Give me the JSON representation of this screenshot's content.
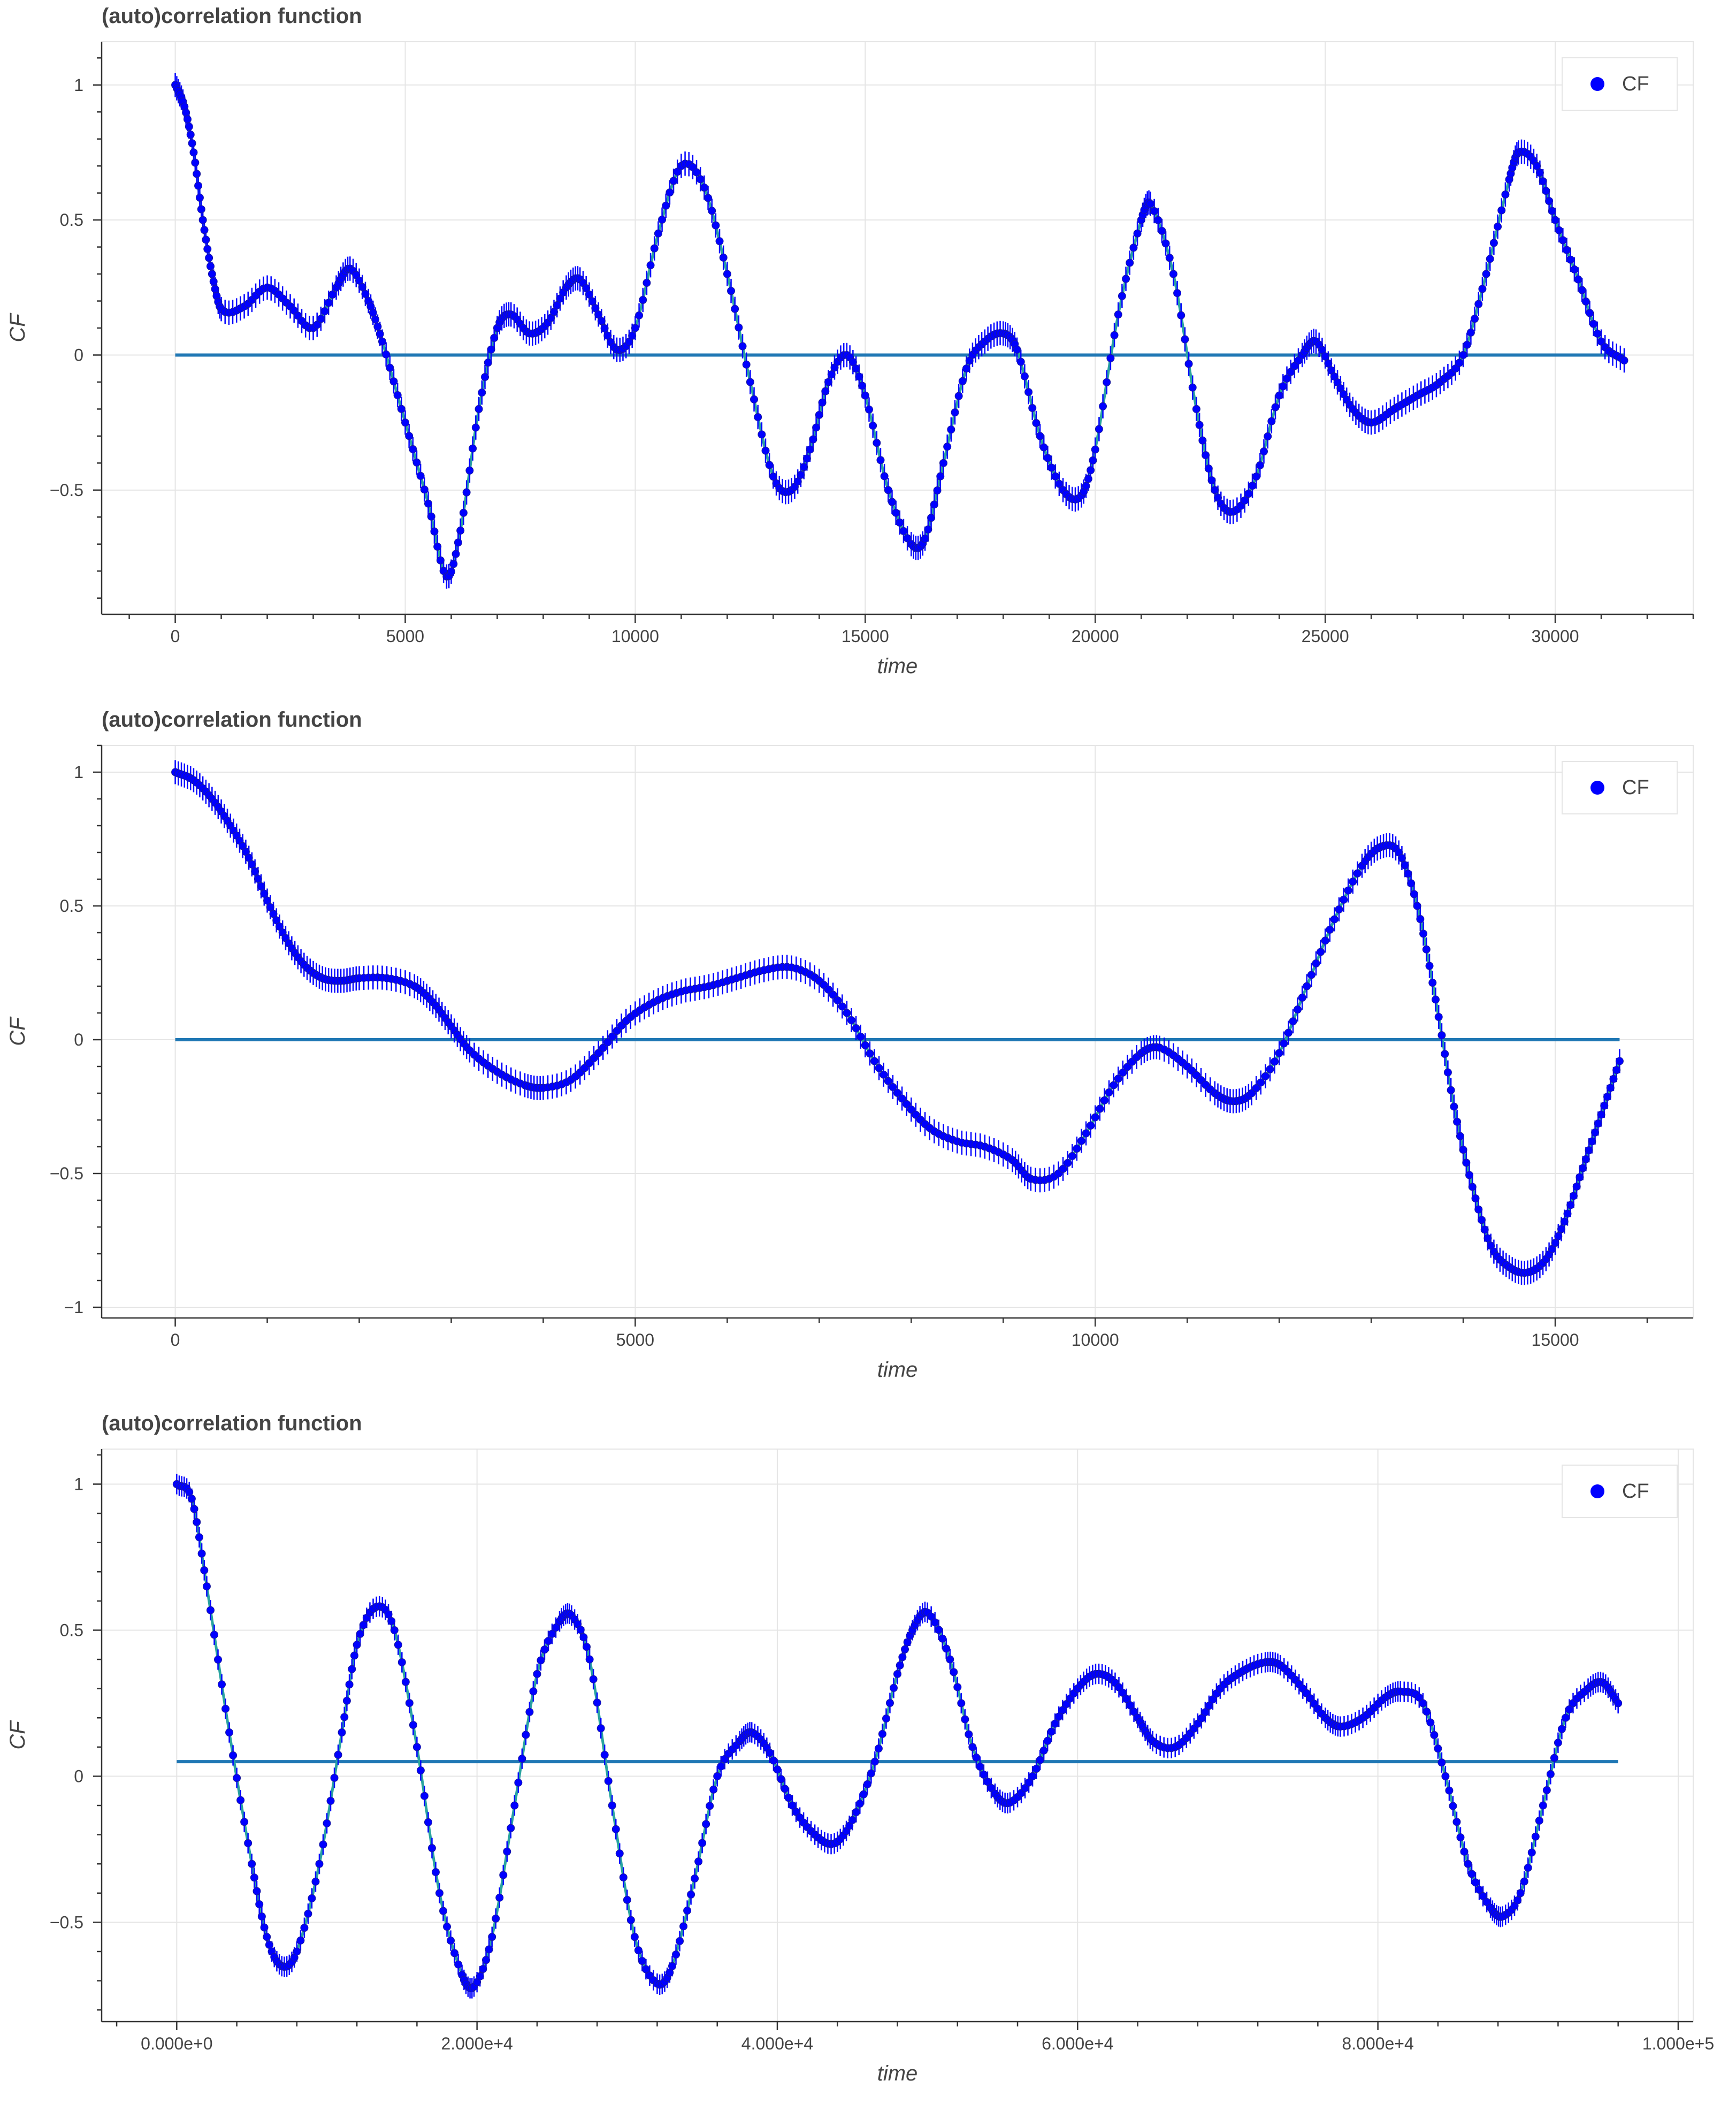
{
  "panels": [
    {
      "title": "(auto)correlation function",
      "legend": {
        "label": "CF",
        "color": "#0000ff"
      },
      "chart_data": {
        "type": "scatter",
        "title": "(auto)correlation function",
        "xlabel": "time",
        "ylabel": "CF",
        "xlim": [
          -1600,
          33000
        ],
        "ylim": [
          -0.96,
          1.16
        ],
        "xticks": [
          0,
          5000,
          10000,
          15000,
          20000,
          25000,
          30000
        ],
        "xtick_labels": [
          "0",
          "5000",
          "10000",
          "15000",
          "20000",
          "25000",
          "30000"
        ],
        "yticks": [
          -0.5,
          0,
          0.5,
          1
        ],
        "ytick_labels": [
          "−0.5",
          "0",
          "0.5",
          "1"
        ],
        "grid": true,
        "legend_position": "top-right",
        "series": [
          {
            "name": "CF",
            "color": "#0000ff",
            "marker": "circle",
            "error_bar": 0.045,
            "x": [
              0,
              200,
              400,
              600,
              800,
              1000,
              1500,
              2000,
              2500,
              3000,
              3500,
              3800,
              4200,
              4500,
              5000,
              5500,
              5900,
              6200,
              6600,
              7000,
              7300,
              7700,
              8100,
              8500,
              8800,
              9200,
              9600,
              10000,
              10500,
              11000,
              11500,
              12000,
              12500,
              13000,
              13400,
              13800,
              14200,
              14600,
              15000,
              15500,
              16000,
              16300,
              16700,
              17200,
              17600,
              18000,
              18300,
              18800,
              19300,
              19700,
              20000,
              20500,
              21000,
              21200,
              21700,
              22200,
              22600,
              23000,
              23500,
              24000,
              24500,
              24800,
              25200,
              25600,
              26000,
              26500,
              27000,
              27500,
              28000,
              28500,
              29000,
              29200,
              29600,
              30000,
              30500,
              31000,
              31500
            ],
            "y": [
              1.0,
              0.92,
              0.75,
              0.5,
              0.3,
              0.17,
              0.18,
              0.25,
              0.18,
              0.1,
              0.25,
              0.32,
              0.2,
              0.05,
              -0.25,
              -0.55,
              -0.82,
              -0.65,
              -0.2,
              0.1,
              0.15,
              0.08,
              0.12,
              0.25,
              0.28,
              0.15,
              0.02,
              0.1,
              0.45,
              0.7,
              0.62,
              0.3,
              -0.1,
              -0.45,
              -0.5,
              -0.35,
              -0.1,
              0.0,
              -0.15,
              -0.5,
              -0.7,
              -0.68,
              -0.4,
              -0.05,
              0.05,
              0.08,
              0.02,
              -0.3,
              -0.5,
              -0.52,
              -0.35,
              0.15,
              0.5,
              0.56,
              0.3,
              -0.2,
              -0.5,
              -0.58,
              -0.45,
              -0.15,
              0.0,
              0.05,
              -0.08,
              -0.2,
              -0.25,
              -0.2,
              -0.15,
              -0.1,
              0.0,
              0.3,
              0.65,
              0.75,
              0.7,
              0.5,
              0.28,
              0.05,
              -0.02
            ]
          }
        ],
        "zero_line": {
          "y": 0,
          "x_range": [
            0,
            31500
          ],
          "color": "#1f77b4"
        }
      }
    },
    {
      "title": "(auto)correlation function",
      "legend": {
        "label": "CF",
        "color": "#0000ff"
      },
      "chart_data": {
        "type": "scatter",
        "title": "(auto)correlation function",
        "xlabel": "time",
        "ylabel": "CF",
        "xlim": [
          -800,
          16500
        ],
        "ylim": [
          -1.04,
          1.1
        ],
        "xticks": [
          0,
          5000,
          10000,
          15000
        ],
        "xtick_labels": [
          "0",
          "5000",
          "10000",
          "15000"
        ],
        "yticks": [
          -1,
          -0.5,
          0,
          0.5,
          1
        ],
        "ytick_labels": [
          "−1",
          "−0.5",
          "0",
          "0.5",
          "1"
        ],
        "grid": true,
        "legend_position": "top-right",
        "series": [
          {
            "name": "CF",
            "color": "#0000ff",
            "marker": "circle",
            "error_bar": 0.045,
            "x": [
              0,
              200,
              400,
              600,
              800,
              1000,
              1200,
              1400,
              1600,
              1800,
              2000,
              2300,
              2600,
              2800,
              3000,
              3200,
              3500,
              3800,
              4000,
              4300,
              4600,
              4900,
              5200,
              5500,
              5800,
              6100,
              6400,
              6700,
              7000,
              7300,
              7600,
              7900,
              8200,
              8500,
              8800,
              9100,
              9300,
              9600,
              9900,
              10200,
              10500,
              10700,
              11000,
              11300,
              11500,
              11700,
              12000,
              12300,
              12600,
              12900,
              13100,
              13300,
              13500,
              13700,
              13900,
              14100,
              14300,
              14500,
              14700,
              14900,
              15100,
              15300,
              15500,
              15700
            ],
            "y": [
              1.0,
              0.97,
              0.9,
              0.8,
              0.68,
              0.52,
              0.38,
              0.28,
              0.23,
              0.22,
              0.23,
              0.23,
              0.2,
              0.14,
              0.05,
              -0.04,
              -0.12,
              -0.17,
              -0.18,
              -0.15,
              -0.05,
              0.07,
              0.14,
              0.18,
              0.2,
              0.23,
              0.26,
              0.27,
              0.22,
              0.1,
              -0.08,
              -0.22,
              -0.33,
              -0.38,
              -0.4,
              -0.45,
              -0.52,
              -0.5,
              -0.35,
              -0.17,
              -0.05,
              -0.03,
              -0.1,
              -0.2,
              -0.23,
              -0.2,
              -0.05,
              0.2,
              0.45,
              0.65,
              0.72,
              0.7,
              0.5,
              0.15,
              -0.25,
              -0.55,
              -0.77,
              -0.85,
              -0.87,
              -0.82,
              -0.68,
              -0.48,
              -0.28,
              -0.08
            ]
          }
        ],
        "zero_line": {
          "y": 0,
          "x_range": [
            0,
            15700
          ],
          "color": "#1f77b4"
        }
      }
    },
    {
      "title": "(auto)correlation function",
      "legend": {
        "label": "CF",
        "color": "#0000ff"
      },
      "chart_data": {
        "type": "scatter",
        "title": "(auto)correlation function",
        "xlabel": "time",
        "ylabel": "CF",
        "xlim": [
          -5000,
          101000
        ],
        "ylim": [
          -0.84,
          1.12
        ],
        "xticks": [
          0,
          20000,
          40000,
          60000,
          80000,
          100000
        ],
        "xtick_labels": [
          "0.000e+0",
          "2.000e+4",
          "4.000e+4",
          "6.000e+4",
          "8.000e+4",
          "1.000e+5"
        ],
        "yticks": [
          -0.5,
          0,
          0.5,
          1
        ],
        "ytick_labels": [
          "−0.5",
          "0",
          "0.5",
          "1"
        ],
        "grid": true,
        "legend_position": "top-right",
        "series": [
          {
            "name": "CF",
            "color": "#0000ff",
            "marker": "circle",
            "error_bar": 0.035,
            "x": [
              0,
              1000,
              2000,
              3500,
              5000,
              6000,
              7000,
              8000,
              9500,
              11000,
              12000,
              13300,
              14500,
              16000,
              17500,
              19000,
              19800,
              21000,
              22500,
              24000,
              25500,
              26300,
              27500,
              29000,
              30500,
              32000,
              33000,
              34500,
              36000,
              37500,
              38300,
              39500,
              41000,
              42500,
              43800,
              45000,
              46500,
              48000,
              49000,
              50000,
              51500,
              53000,
              54500,
              55500,
              57000,
              58500,
              60000,
              61200,
              62500,
              64000,
              65000,
              66500,
              68000,
              69500,
              71000,
              72500,
              73500,
              75000,
              76500,
              77500,
              79000,
              80500,
              81500,
              83000,
              84500,
              86000,
              87500,
              88300,
              89500,
              91000,
              92500,
              94000,
              95000,
              96000
            ],
            "y": [
              1.0,
              0.95,
              0.65,
              0.15,
              -0.3,
              -0.55,
              -0.65,
              -0.6,
              -0.3,
              0.15,
              0.45,
              0.58,
              0.5,
              0.1,
              -0.4,
              -0.68,
              -0.72,
              -0.55,
              -0.1,
              0.35,
              0.53,
              0.55,
              0.4,
              -0.1,
              -0.55,
              -0.71,
              -0.65,
              -0.35,
              0.0,
              0.12,
              0.15,
              0.08,
              -0.1,
              -0.2,
              -0.23,
              -0.15,
              0.05,
              0.35,
              0.5,
              0.56,
              0.4,
              0.1,
              -0.06,
              -0.09,
              0.0,
              0.18,
              0.3,
              0.35,
              0.32,
              0.2,
              0.12,
              0.1,
              0.18,
              0.3,
              0.36,
              0.39,
              0.38,
              0.3,
              0.2,
              0.17,
              0.2,
              0.27,
              0.29,
              0.25,
              0.0,
              -0.3,
              -0.45,
              -0.48,
              -0.4,
              -0.1,
              0.2,
              0.3,
              0.32,
              0.25
            ]
          }
        ],
        "zero_line": {
          "y": 0.05,
          "x_range": [
            0,
            96000
          ],
          "color": "#1f77b4"
        }
      }
    }
  ]
}
